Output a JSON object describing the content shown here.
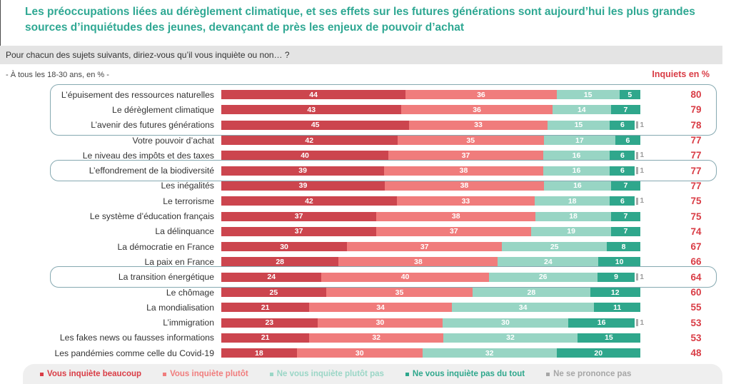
{
  "page": {
    "title": "Les préoccupations liées au dérèglement climatique, et ses effets sur les futures générations sont aujourd’hui les plus grandes sources d’inquiétudes des jeunes, devançant de près les enjeux de pouvoir d’achat",
    "question": "Pour chacun des sujets suivants, diriez-vous qu’il vous inquiète ou non… ?",
    "base_note": "- À tous les 18-30 ans, en % -",
    "right_header": "Inquiets en %"
  },
  "colors": {
    "title_text": "#2FA893",
    "total_text": "#D93C45",
    "question_bg": "#E4E4E4",
    "legend_bg": "#EFEFEF",
    "highlight_border": "#86A9B1",
    "series": [
      "#CC454E",
      "#F07C7C",
      "#98D5C4",
      "#2FA78C",
      "#ABABAB"
    ]
  },
  "chart_data": {
    "type": "bar",
    "orientation": "horizontal",
    "stacked": true,
    "unit": "%",
    "xlim": [
      0,
      100
    ],
    "series_names": [
      "Vous inquiète beaucoup",
      "Vous inquiète plutôt",
      "Ne vous inquiète plutôt pas",
      "Ne vous inquiète pas du tout",
      "Ne se prononce pas"
    ],
    "legend": [
      {
        "label": "Vous inquiète beaucoup",
        "color": "#D93C45"
      },
      {
        "label": "Vous inquiète plutôt",
        "color": "#F07D7D"
      },
      {
        "label": "Ne vous inquiète plutôt pas",
        "color": "#9AD6C6"
      },
      {
        "label": "Ne vous inquiète pas du tout",
        "color": "#2EA78C"
      },
      {
        "label": "Ne se prononce pas",
        "color": "#A6A6A6"
      }
    ],
    "rows": [
      {
        "label": "L’épuisement des ressources naturelles",
        "values": [
          44,
          36,
          15,
          5,
          0
        ],
        "total": 80,
        "box": "g1"
      },
      {
        "label": "Le dérèglement climatique",
        "values": [
          43,
          36,
          14,
          7,
          0
        ],
        "total": 79,
        "box": "g1"
      },
      {
        "label": "L’avenir des futures générations",
        "values": [
          45,
          33,
          15,
          6,
          1
        ],
        "total": 78,
        "box": "g1"
      },
      {
        "label": "Votre pouvoir d’achat",
        "values": [
          42,
          35,
          17,
          6,
          0
        ],
        "total": 77,
        "box": null
      },
      {
        "label": "Le niveau des impôts et des taxes",
        "values": [
          40,
          37,
          16,
          6,
          1
        ],
        "total": 77,
        "box": null
      },
      {
        "label": "L’effondrement de la biodiversité",
        "values": [
          39,
          38,
          16,
          6,
          1
        ],
        "total": 77,
        "box": "g2"
      },
      {
        "label": "Les inégalités",
        "values": [
          39,
          38,
          16,
          7,
          0
        ],
        "total": 77,
        "box": null
      },
      {
        "label": "Le terrorisme",
        "values": [
          42,
          33,
          18,
          6,
          1
        ],
        "total": 75,
        "box": null
      },
      {
        "label": "Le système d’éducation français",
        "values": [
          37,
          38,
          18,
          7,
          0
        ],
        "total": 75,
        "box": null
      },
      {
        "label": "La délinquance",
        "values": [
          37,
          37,
          19,
          7,
          0
        ],
        "total": 74,
        "box": null
      },
      {
        "label": "La démocratie en France",
        "values": [
          30,
          37,
          25,
          8,
          0
        ],
        "total": 67,
        "box": null
      },
      {
        "label": "La paix en France",
        "values": [
          28,
          38,
          24,
          10,
          0
        ],
        "total": 66,
        "box": null
      },
      {
        "label": "La transition énergétique",
        "values": [
          24,
          40,
          26,
          9,
          1
        ],
        "total": 64,
        "box": "g3"
      },
      {
        "label": "Le chômage",
        "values": [
          25,
          35,
          28,
          12,
          0
        ],
        "total": 60,
        "box": null
      },
      {
        "label": "La mondialisation",
        "values": [
          21,
          34,
          34,
          11,
          0
        ],
        "total": 55,
        "box": null
      },
      {
        "label": "L’immigration",
        "values": [
          23,
          30,
          30,
          16,
          1
        ],
        "total": 53,
        "box": null
      },
      {
        "label": "Les fakes news ou fausses informations",
        "values": [
          21,
          32,
          32,
          15,
          0
        ],
        "total": 53,
        "box": null
      },
      {
        "label": "Les pandémies comme celle du Covid-19",
        "values": [
          18,
          30,
          32,
          20,
          0
        ],
        "total": 48,
        "box": null
      }
    ]
  }
}
